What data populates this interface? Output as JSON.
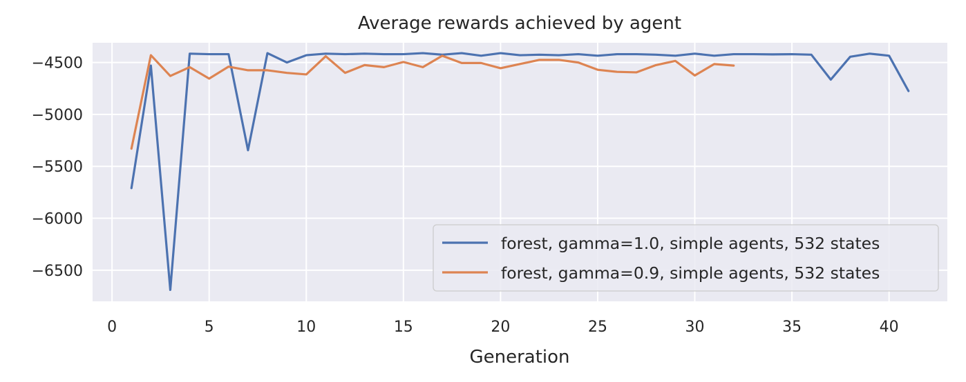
{
  "chart_data": {
    "type": "line",
    "title": "Average rewards achieved by agent",
    "xlabel": "Generation",
    "ylabel": "",
    "xlim": [
      -1,
      43
    ],
    "ylim": [
      -6800,
      -4310
    ],
    "xticks": [
      0,
      5,
      10,
      15,
      20,
      25,
      30,
      35,
      40
    ],
    "yticks": [
      -6500,
      -6000,
      -5500,
      -5000,
      -4500
    ],
    "ytick_labels": [
      "−6500",
      "−6000",
      "−5500",
      "−5000",
      "−4500"
    ],
    "grid": true,
    "legend_position": "lower-right",
    "background": "#EAEAF2",
    "series": [
      {
        "name": "forest, gamma=1.0, simple agents, 532 states",
        "color": "#4C72B0",
        "x": [
          1,
          2,
          3,
          4,
          5,
          6,
          7,
          8,
          9,
          10,
          11,
          12,
          13,
          14,
          15,
          16,
          17,
          18,
          19,
          20,
          21,
          22,
          23,
          24,
          25,
          26,
          27,
          28,
          29,
          30,
          31,
          32,
          33,
          34,
          35,
          36,
          37,
          38,
          39,
          40,
          41
        ],
        "values": [
          -5710,
          -4530,
          -6690,
          -4415,
          -4420,
          -4420,
          -5345,
          -4410,
          -4500,
          -4430,
          -4415,
          -4420,
          -4415,
          -4420,
          -4420,
          -4410,
          -4425,
          -4410,
          -4435,
          -4410,
          -4430,
          -4425,
          -4430,
          -4420,
          -4435,
          -4420,
          -4420,
          -4425,
          -4435,
          -4415,
          -4435,
          -4420,
          -4420,
          -4422,
          -4420,
          -4425,
          -4665,
          -4445,
          -4415,
          -4435,
          -4775
        ]
      },
      {
        "name": "forest, gamma=0.9, simple agents, 532 states",
        "color": "#DD8452",
        "x": [
          1,
          2,
          3,
          4,
          5,
          6,
          7,
          8,
          9,
          10,
          11,
          12,
          13,
          14,
          15,
          16,
          17,
          18,
          19,
          20,
          21,
          22,
          23,
          24,
          25,
          26,
          27,
          28,
          29,
          30,
          31,
          32
        ],
        "values": [
          -5330,
          -4430,
          -4630,
          -4545,
          -4655,
          -4540,
          -4575,
          -4575,
          -4600,
          -4615,
          -4440,
          -4600,
          -4525,
          -4545,
          -4495,
          -4545,
          -4435,
          -4505,
          -4505,
          -4555,
          -4515,
          -4475,
          -4475,
          -4500,
          -4570,
          -4590,
          -4595,
          -4525,
          -4485,
          -4625,
          -4515,
          -4530
        ]
      }
    ]
  }
}
